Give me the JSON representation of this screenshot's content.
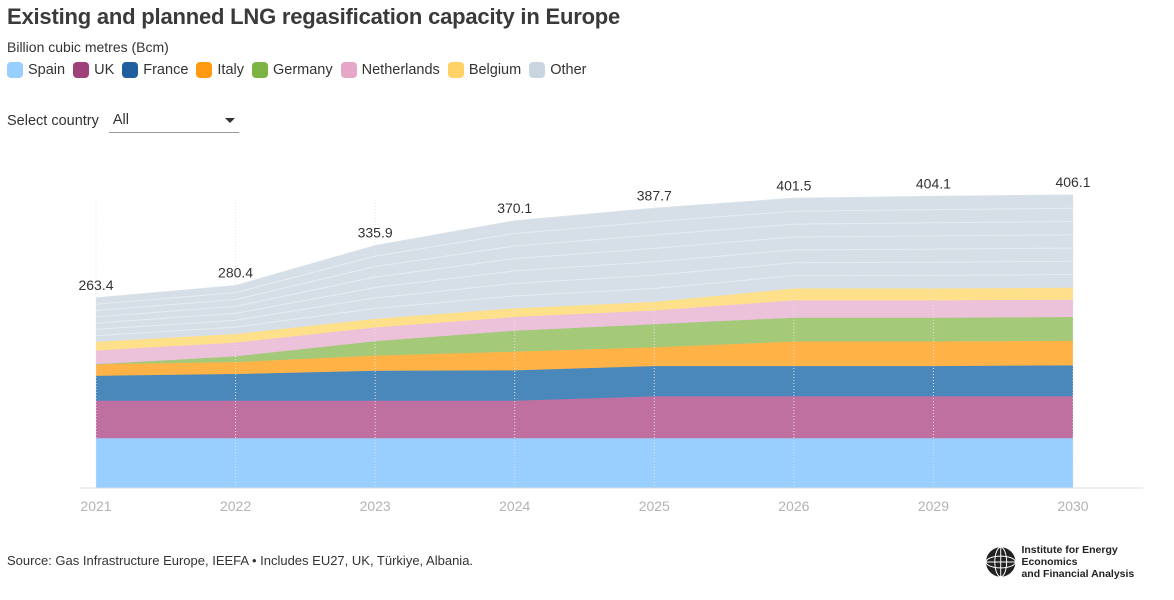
{
  "header": {
    "title": "Existing and planned LNG regasification capacity in Europe",
    "subtitle": "Billion cubic metres (Bcm)"
  },
  "legend": [
    {
      "label": "Spain",
      "color": "#99cfff"
    },
    {
      "label": "UK",
      "color": "#a0407a"
    },
    {
      "label": "France",
      "color": "#1f5fa0"
    },
    {
      "label": "Italy",
      "color": "#ff9a10"
    },
    {
      "label": "Germany",
      "color": "#7cb342"
    },
    {
      "label": "Netherlands",
      "color": "#e6a6c8"
    },
    {
      "label": "Belgium",
      "color": "#ffd166"
    },
    {
      "label": "Other",
      "color": "#c9d6e1"
    }
  ],
  "filter": {
    "label": "Select country",
    "selected": "All"
  },
  "footer": {
    "source": "Source: Gas Infrastructure Europe, IEEFA • Includes EU27, UK, Türkiye, Albania."
  },
  "logo": {
    "line1": "Institute for Energy Economics",
    "line2": "and Financial Analysis"
  },
  "chart_data": {
    "type": "area",
    "stacked": true,
    "title": "Existing and planned LNG regasification capacity in Europe",
    "ylabel": "Billion cubic metres (Bcm)",
    "categories": [
      "2021",
      "2022",
      "2023",
      "2024",
      "2025",
      "2026",
      "2029",
      "2030"
    ],
    "ylim": [
      0,
      440
    ],
    "grid": false,
    "legend_position": "top-left",
    "series": [
      {
        "name": "Spain",
        "color": "#99cfff",
        "values": [
          69,
          69,
          69,
          69,
          69,
          69,
          69,
          69
        ]
      },
      {
        "name": "UK",
        "color": "#c070a0",
        "values": [
          52,
          52,
          52,
          52,
          58,
          58,
          58,
          58
        ]
      },
      {
        "name": "France",
        "color": "#4a88bb",
        "values": [
          34.5,
          37,
          41.5,
          42,
          42,
          42,
          42,
          43
        ]
      },
      {
        "name": "Italy",
        "color": "#ffb347",
        "values": [
          16,
          16.5,
          21,
          26,
          26,
          34,
          34,
          34
        ]
      },
      {
        "name": "Germany",
        "color": "#a3c979",
        "values": [
          0,
          8,
          20,
          29,
          32,
          33,
          33,
          33
        ]
      },
      {
        "name": "Netherlands",
        "color": "#ecc1da",
        "values": [
          19,
          19,
          19,
          19,
          19,
          24,
          24,
          24
        ]
      },
      {
        "name": "Belgium",
        "color": "#ffe08a",
        "values": [
          12,
          12,
          12,
          12,
          12,
          16.5,
          16.5,
          16.5
        ]
      },
      {
        "name": "Other",
        "color": "#d6dfe7",
        "values": [
          60.9,
          66.9,
          101.4,
          121.1,
          129.7,
          125,
          127.6,
          128.6
        ]
      }
    ],
    "totals": [
      263.4,
      280.4,
      335.9,
      370.1,
      387.7,
      401.5,
      404.1,
      406.1
    ],
    "data_labels": [
      "263.4",
      "280.4",
      "335.9",
      "370.1",
      "387.7",
      "401.5",
      "404.1",
      "406.1"
    ]
  }
}
